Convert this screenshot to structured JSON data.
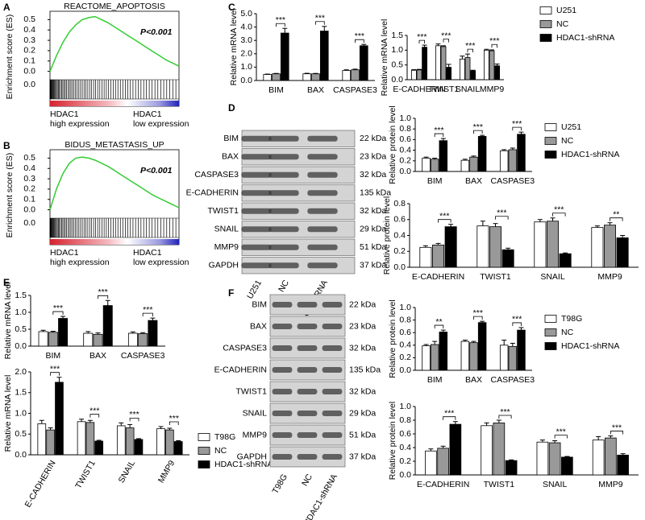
{
  "panels": [
    "A",
    "B",
    "C",
    "D",
    "E",
    "F"
  ],
  "chart_data": [
    {
      "type": "line",
      "title": "REACTOME_APOPTOSIS",
      "annotation": "P<0.001",
      "ylabel": "Enrichment score (ES)",
      "color": "#33cc33",
      "values": [
        0,
        0.15,
        0.28,
        0.38,
        0.45,
        0.5,
        0.52,
        0.53,
        0.5,
        0.47,
        0.43,
        0.39,
        0.35,
        0.31,
        0.27,
        0.23,
        0.19,
        0.15,
        0.11,
        0.08,
        0.05
      ],
      "ylim": [
        -0.05,
        0.55
      ],
      "yticks": [
        {
          "value": 0,
          "label": "0.0"
        },
        {
          "value": 0.1,
          "label": "0.1"
        },
        {
          "value": 0.2,
          "label": "0.2"
        },
        {
          "value": 0.3,
          "label": "0.3"
        },
        {
          "value": 0.4,
          "label": "0.4"
        },
        {
          "value": 0.5,
          "label": "0.5"
        }
      ],
      "rank_label": "0.0",
      "left_label": [
        "HDAC1",
        "high expression"
      ],
      "right_label": [
        "HDAC1",
        "low expression"
      ]
    },
    {
      "type": "line",
      "title": "BIDUS_METASTASIS_UP",
      "annotation": "P<0.001",
      "ylabel": "Enrichment score (ES)",
      "color": "#33cc33",
      "values": [
        0,
        0.2,
        0.35,
        0.45,
        0.5,
        0.51,
        0.5,
        0.48,
        0.45,
        0.42,
        0.38,
        0.34,
        0.3,
        0.26,
        0.22,
        0.18,
        0.14,
        0.11,
        0.08,
        0.05,
        0.02
      ],
      "ylim": [
        -0.05,
        0.55
      ],
      "yticks": [
        {
          "value": 0,
          "label": "0.0"
        },
        {
          "value": 0.1,
          "label": "0.1"
        },
        {
          "value": 0.2,
          "label": "0.2"
        },
        {
          "value": 0.3,
          "label": "0.3"
        },
        {
          "value": 0.4,
          "label": "0.4"
        },
        {
          "value": 0.5,
          "label": "0.5"
        }
      ],
      "rank_label": "0.0",
      "left_label": [
        "HDAC1",
        "high expression"
      ],
      "right_label": [
        "HDAC1",
        "low expression"
      ]
    },
    {
      "type": "bar",
      "ylabel": "Relative mRNA level",
      "categories": [
        "BIM",
        "BAX",
        "CASPASE3"
      ],
      "series": [
        {
          "color": "#ffffff",
          "values": [
            0.45,
            0.5,
            0.75
          ],
          "errors": [
            0.03,
            0.04,
            0.05
          ]
        },
        {
          "color": "#999999",
          "values": [
            0.5,
            0.5,
            0.8
          ],
          "errors": [
            0.03,
            0.03,
            0.05
          ]
        },
        {
          "color": "#000000",
          "values": [
            3.55,
            3.7,
            2.6
          ],
          "errors": [
            0.35,
            0.35,
            0.1
          ]
        }
      ],
      "significance": [
        "***",
        "***",
        "***"
      ],
      "ylim": [
        0,
        5
      ],
      "yticks": [
        {
          "value": 0,
          "label": "0.0"
        },
        {
          "value": 1,
          "label": "1.0"
        },
        {
          "value": 2,
          "label": "2.0"
        },
        {
          "value": 3,
          "label": "3.0"
        },
        {
          "value": 4,
          "label": "4.0"
        },
        {
          "value": 5,
          "label": "5.0"
        }
      ]
    },
    {
      "type": "bar",
      "ylabel": "Relative mRNA level",
      "categories": [
        "E-CADHERIN",
        "TWIST1",
        "SNAIL",
        "MMP9"
      ],
      "series": [
        {
          "name": "U251",
          "color": "#ffffff",
          "values": [
            0.32,
            1.15,
            0.7,
            1.0
          ],
          "errors": [
            0.02,
            0.06,
            0.1,
            0.03
          ]
        },
        {
          "name": "NC",
          "color": "#999999",
          "values": [
            0.33,
            1.12,
            0.75,
            0.98
          ],
          "errors": [
            0.02,
            0.03,
            0.12,
            0.03
          ]
        },
        {
          "name": "HDAC1-shRNA",
          "color": "#000000",
          "values": [
            1.1,
            0.42,
            0.3,
            0.47
          ],
          "errors": [
            0.07,
            0.1,
            0.02,
            0.06
          ]
        }
      ],
      "significance": [
        "***",
        "***",
        "***",
        "***"
      ],
      "ylim": [
        0,
        1.5
      ],
      "yticks": [
        {
          "value": 0,
          "label": "0.0"
        },
        {
          "value": 0.5,
          "label": "0.5"
        },
        {
          "value": 1,
          "label": "1.0"
        },
        {
          "value": 1.5,
          "label": "1.5"
        }
      ]
    },
    {
      "type": "bar",
      "ylabel": "Relative protein level",
      "categories": [
        "BIM",
        "BAX",
        "CASPASE3"
      ],
      "series": [
        {
          "name": "U251",
          "color": "#ffffff",
          "values": [
            0.25,
            0.21,
            0.39
          ],
          "errors": [
            0.02,
            0.02,
            0.02
          ]
        },
        {
          "name": "NC",
          "color": "#999999",
          "values": [
            0.23,
            0.27,
            0.41
          ],
          "errors": [
            0.02,
            0.02,
            0.03
          ]
        },
        {
          "name": "HDAC1-shRNA",
          "color": "#000000",
          "values": [
            0.58,
            0.66,
            0.7
          ],
          "errors": [
            0.04,
            0.02,
            0.04
          ]
        }
      ],
      "significance": [
        "***",
        "***",
        "***"
      ],
      "ylim": [
        0,
        1
      ],
      "yticks": [
        {
          "value": 0,
          "label": "0.0"
        },
        {
          "value": 0.2,
          "label": "0.2"
        },
        {
          "value": 0.4,
          "label": "0.4"
        },
        {
          "value": 0.6,
          "label": "0.6"
        },
        {
          "value": 0.8,
          "label": "0.8"
        },
        {
          "value": 1,
          "label": "1.0"
        }
      ]
    },
    {
      "type": "bar",
      "ylabel": "Relative protein level",
      "categories": [
        "E-CADHERIN",
        "TWIST1",
        "SNAIL",
        "MMP9"
      ],
      "series": [
        {
          "color": "#ffffff",
          "values": [
            0.25,
            0.52,
            0.57,
            0.5
          ],
          "errors": [
            0.02,
            0.06,
            0.03,
            0.02
          ]
        },
        {
          "color": "#999999",
          "values": [
            0.28,
            0.51,
            0.58,
            0.53
          ],
          "errors": [
            0.02,
            0.04,
            0.04,
            0.03
          ]
        },
        {
          "color": "#000000",
          "values": [
            0.51,
            0.22,
            0.17,
            0.37
          ],
          "errors": [
            0.03,
            0.02,
            0.01,
            0.03
          ]
        }
      ],
      "significance": [
        "***",
        "***",
        "***",
        "**"
      ],
      "ylim": [
        0,
        0.8
      ],
      "yticks": [
        {
          "value": 0,
          "label": "0.0"
        },
        {
          "value": 0.2,
          "label": "0.2"
        },
        {
          "value": 0.4,
          "label": "0.4"
        },
        {
          "value": 0.6,
          "label": "0.6"
        },
        {
          "value": 0.8,
          "label": "0.8"
        }
      ]
    },
    {
      "type": "bar",
      "ylabel": "Relative mRNA level",
      "categories": [
        "BIM",
        "BAX",
        "CASPASE3"
      ],
      "series": [
        {
          "color": "#ffffff",
          "values": [
            0.43,
            0.38,
            0.38
          ],
          "errors": [
            0.04,
            0.05,
            0.04
          ]
        },
        {
          "color": "#999999",
          "values": [
            0.41,
            0.35,
            0.37
          ],
          "errors": [
            0.03,
            0.04,
            0.03
          ]
        },
        {
          "color": "#000000",
          "values": [
            0.82,
            1.2,
            0.76
          ],
          "errors": [
            0.06,
            0.15,
            0.07
          ]
        }
      ],
      "significance": [
        "***",
        "***",
        "***"
      ],
      "ylim": [
        0,
        1.5
      ],
      "yticks": [
        {
          "value": 0,
          "label": "0.0"
        },
        {
          "value": 0.5,
          "label": "0.5"
        },
        {
          "value": 1,
          "label": "1.0"
        },
        {
          "value": 1.5,
          "label": "1.5"
        }
      ]
    },
    {
      "type": "bar",
      "ylabel": "Relative mRNA level",
      "categories": [
        "E-CADHERIN",
        "TWIST1",
        "SNAIL",
        "MMP9"
      ],
      "series": [
        {
          "name": "T98G",
          "color": "#ffffff",
          "values": [
            0.75,
            0.8,
            0.7,
            0.63
          ],
          "errors": [
            0.08,
            0.06,
            0.07,
            0.05
          ]
        },
        {
          "name": "NC",
          "color": "#999999",
          "values": [
            0.6,
            0.78,
            0.65,
            0.6
          ],
          "errors": [
            0.05,
            0.05,
            0.08,
            0.04
          ]
        },
        {
          "name": "HDAC1-shRNA",
          "color": "#000000",
          "values": [
            1.75,
            0.33,
            0.37,
            0.32
          ],
          "errors": [
            0.12,
            0.02,
            0.02,
            0.02
          ]
        }
      ],
      "significance": [
        "***",
        "***",
        "***",
        "***"
      ],
      "ylim": [
        0,
        2
      ],
      "yticks": [
        {
          "value": 0,
          "label": "0.0"
        },
        {
          "value": 0.5,
          "label": "0.5"
        },
        {
          "value": 1,
          "label": "1.0"
        },
        {
          "value": 1.5,
          "label": "1.5"
        },
        {
          "value": 2,
          "label": "2.0"
        }
      ]
    },
    {
      "type": "bar",
      "ylabel": "Relative protein level",
      "categories": [
        "BIM",
        "BAX",
        "CASPASE3"
      ],
      "series": [
        {
          "name": "T98G",
          "color": "#ffffff",
          "values": [
            0.39,
            0.46,
            0.4
          ],
          "errors": [
            0.02,
            0.02,
            0.08
          ]
        },
        {
          "name": "NC",
          "color": "#999999",
          "values": [
            0.41,
            0.44,
            0.38
          ],
          "errors": [
            0.05,
            0.02,
            0.05
          ]
        },
        {
          "name": "HDAC1-shRNA",
          "color": "#000000",
          "values": [
            0.61,
            0.76,
            0.64
          ],
          "errors": [
            0.03,
            0.02,
            0.04
          ]
        }
      ],
      "significance": [
        "**",
        "***",
        "***"
      ],
      "ylim": [
        0,
        1
      ],
      "yticks": [
        {
          "value": 0,
          "label": "0.0"
        },
        {
          "value": 0.2,
          "label": "0.2"
        },
        {
          "value": 0.4,
          "label": "0.4"
        },
        {
          "value": 0.6,
          "label": "0.6"
        },
        {
          "value": 0.8,
          "label": "0.8"
        },
        {
          "value": 1,
          "label": "1.0"
        }
      ]
    },
    {
      "type": "bar",
      "ylabel": "Relative protein level",
      "categories": [
        "E-CADHERIN",
        "TWIST1",
        "SNAIL",
        "MMP9"
      ],
      "series": [
        {
          "color": "#ffffff",
          "values": [
            0.35,
            0.72,
            0.48,
            0.51
          ],
          "errors": [
            0.03,
            0.04,
            0.03,
            0.05
          ]
        },
        {
          "color": "#999999",
          "values": [
            0.39,
            0.76,
            0.47,
            0.54
          ],
          "errors": [
            0.03,
            0.04,
            0.03,
            0.03
          ]
        },
        {
          "color": "#000000",
          "values": [
            0.74,
            0.21,
            0.26,
            0.29
          ],
          "errors": [
            0.04,
            0.01,
            0.01,
            0.02
          ]
        }
      ],
      "significance": [
        "***",
        "***",
        "***",
        "***"
      ],
      "ylim": [
        0,
        1
      ],
      "yticks": [
        {
          "value": 0,
          "label": "0.0"
        },
        {
          "value": 0.2,
          "label": "0.2"
        },
        {
          "value": 0.4,
          "label": "0.4"
        },
        {
          "value": 0.6,
          "label": "0.6"
        },
        {
          "value": 0.8,
          "label": "0.8"
        },
        {
          "value": 1,
          "label": "1.0"
        }
      ]
    }
  ],
  "blots": [
    {
      "lanes": [
        "U251",
        "NC",
        "HDAC1-shRNA"
      ],
      "rows": [
        {
          "protein": "BIM",
          "size": "22 kDa"
        },
        {
          "protein": "BAX",
          "size": "23 kDa"
        },
        {
          "protein": "CASPASE3",
          "size": "32 kDa"
        },
        {
          "protein": "E-CADHERIN",
          "size": "135 kDa"
        },
        {
          "protein": "TWIST1",
          "size": "32 kDa"
        },
        {
          "protein": "SNAIL",
          "size": "29 kDa"
        },
        {
          "protein": "MMP9",
          "size": "51 kDa"
        },
        {
          "protein": "GAPDH",
          "size": "37 kDa"
        }
      ]
    },
    {
      "lanes": [
        "T98G",
        "NC",
        "HDAC1-shRNA"
      ],
      "rows": [
        {
          "protein": "BIM",
          "size": "22 kDa"
        },
        {
          "protein": "BAX",
          "size": "23 kDa"
        },
        {
          "protein": "CASPASE3",
          "size": "32 kDa"
        },
        {
          "protein": "E-CADHERIN",
          "size": "135 kDa"
        },
        {
          "protein": "TWIST1",
          "size": "32 kDa"
        },
        {
          "protein": "SNAIL",
          "size": "29 kDa"
        },
        {
          "protein": "MMP9",
          "size": "51 kDa"
        },
        {
          "protein": "GAPDH",
          "size": "37 kDa"
        }
      ]
    }
  ]
}
